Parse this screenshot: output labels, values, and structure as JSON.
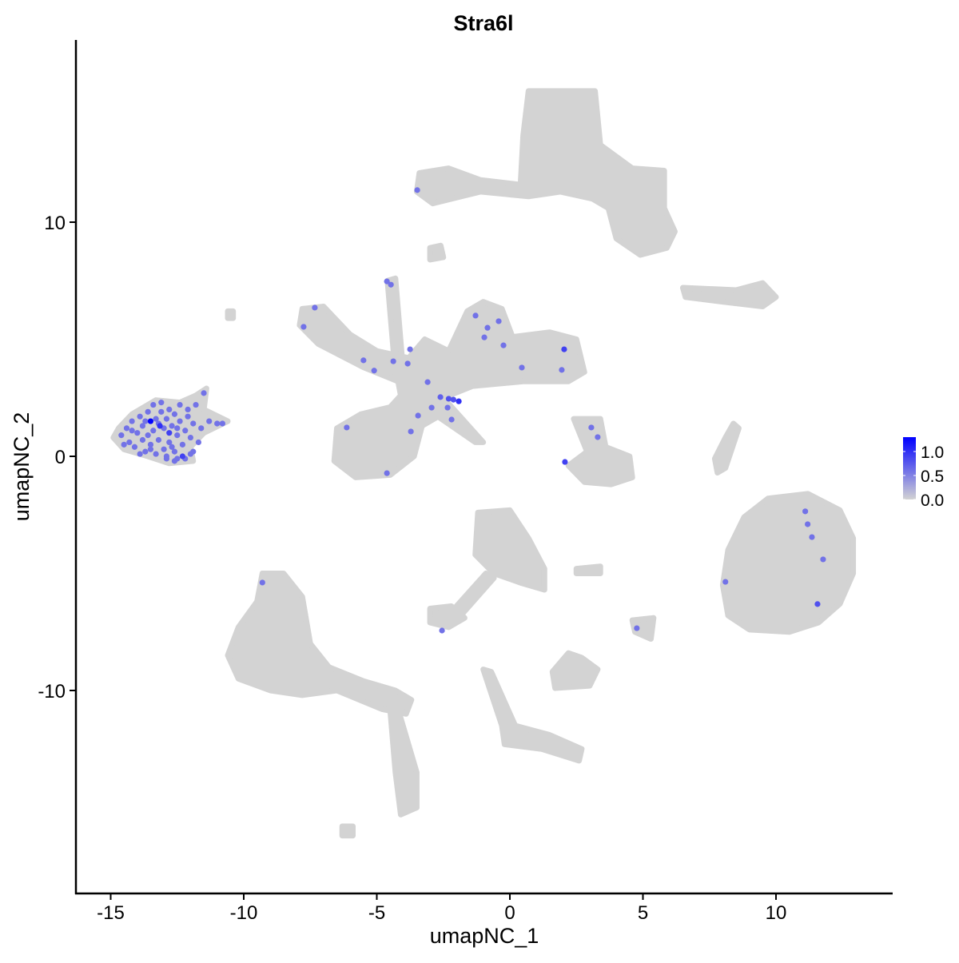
{
  "chart_data": {
    "type": "scatter",
    "title": "Stra6l",
    "xlabel": "umapNC_1",
    "ylabel": "umapNC_2",
    "xlim": [
      -16.3,
      14.4
    ],
    "ylim": [
      -18.6,
      17.9
    ],
    "xticks": [
      -15,
      -10,
      -5,
      0,
      5,
      10
    ],
    "yticks": [
      -10,
      0,
      10
    ],
    "xtick_labels": [
      "-15",
      "-10",
      "-5",
      "0",
      "5",
      "10"
    ],
    "ytick_labels": [
      "-10",
      "0",
      "10"
    ],
    "grid": false,
    "colors": {
      "low": "#D3D3D3",
      "high": "#0000FF"
    },
    "legend": {
      "position": "right",
      "min": 0.0,
      "max": 1.3,
      "ticks": [
        0.0,
        0.5,
        1.0
      ],
      "tick_labels": [
        "0.0",
        "0.5",
        "1.0"
      ]
    },
    "background_clusters": [
      [
        [
          0.7,
          15.6
        ],
        [
          3.2,
          15.6
        ],
        [
          3.4,
          13.3
        ],
        [
          4.6,
          12.3
        ],
        [
          5.8,
          12.2
        ],
        [
          5.8,
          10.6
        ],
        [
          6.2,
          9.6
        ],
        [
          5.9,
          8.9
        ],
        [
          4.9,
          8.6
        ],
        [
          4.0,
          9.3
        ],
        [
          3.7,
          10.6
        ],
        [
          3.1,
          11.0
        ],
        [
          1.9,
          11.3
        ],
        [
          0.7,
          11.1
        ],
        [
          -1.1,
          11.3
        ],
        [
          -2.9,
          10.8
        ],
        [
          -3.5,
          11.3
        ],
        [
          -3.4,
          12.1
        ],
        [
          -2.3,
          12.3
        ],
        [
          -1.1,
          11.8
        ],
        [
          0.4,
          11.6
        ],
        [
          0.5,
          13.7
        ]
      ],
      [
        [
          -3.0,
          8.9
        ],
        [
          -2.6,
          9.0
        ],
        [
          -2.5,
          8.5
        ],
        [
          -3.0,
          8.4
        ]
      ],
      [
        [
          6.5,
          7.2
        ],
        [
          8.5,
          7.1
        ],
        [
          9.5,
          7.4
        ],
        [
          10.0,
          6.8
        ],
        [
          9.5,
          6.4
        ],
        [
          8.0,
          6.6
        ],
        [
          6.6,
          6.8
        ]
      ],
      [
        [
          -7.8,
          6.3
        ],
        [
          -7.0,
          6.4
        ],
        [
          -6.0,
          5.2
        ],
        [
          -5.0,
          4.5
        ],
        [
          -3.8,
          4.2
        ],
        [
          -3.2,
          5.0
        ],
        [
          -2.3,
          4.5
        ],
        [
          -1.6,
          6.2
        ],
        [
          -1.0,
          6.6
        ],
        [
          -0.3,
          6.3
        ],
        [
          0.1,
          5.1
        ],
        [
          1.5,
          5.3
        ],
        [
          2.5,
          5.0
        ],
        [
          2.8,
          3.6
        ],
        [
          2.2,
          3.2
        ],
        [
          0.5,
          3.2
        ],
        [
          -1.4,
          3.0
        ],
        [
          -2.5,
          2.5
        ],
        [
          -1.0,
          0.6
        ],
        [
          -1.3,
          0.6
        ],
        [
          -2.7,
          1.7
        ],
        [
          -3.3,
          1.3
        ],
        [
          -3.6,
          0.0
        ],
        [
          -4.5,
          -0.8
        ],
        [
          -5.8,
          -0.9
        ],
        [
          -6.6,
          -0.2
        ],
        [
          -6.5,
          1.2
        ],
        [
          -5.6,
          1.8
        ],
        [
          -4.5,
          2.1
        ],
        [
          -4.1,
          2.6
        ],
        [
          -4.2,
          3.2
        ],
        [
          -5.5,
          3.8
        ],
        [
          -7.2,
          4.8
        ],
        [
          -7.9,
          5.6
        ]
      ],
      [
        [
          -4.6,
          7.5
        ],
        [
          -4.3,
          7.6
        ],
        [
          -4.0,
          3.5
        ],
        [
          -4.3,
          3.5
        ]
      ],
      [
        [
          -14.7,
          1.2
        ],
        [
          -14.2,
          1.8
        ],
        [
          -13.3,
          2.4
        ],
        [
          -12.4,
          2.3
        ],
        [
          -11.8,
          2.6
        ],
        [
          -11.4,
          2.9
        ],
        [
          -11.5,
          2.0
        ],
        [
          -10.6,
          1.5
        ],
        [
          -11.5,
          1.0
        ],
        [
          -12.0,
          0.4
        ],
        [
          -11.9,
          -0.2
        ],
        [
          -12.8,
          -0.3
        ],
        [
          -13.6,
          0.0
        ],
        [
          -14.5,
          0.3
        ],
        [
          -14.9,
          0.8
        ]
      ],
      [
        [
          2.4,
          1.6
        ],
        [
          3.4,
          1.6
        ],
        [
          3.6,
          0.4
        ],
        [
          4.5,
          0.0
        ],
        [
          4.6,
          -0.9
        ],
        [
          3.8,
          -1.2
        ],
        [
          2.8,
          -1.1
        ],
        [
          2.2,
          -0.4
        ],
        [
          2.9,
          0.2
        ]
      ],
      [
        [
          8.4,
          1.4
        ],
        [
          8.6,
          1.2
        ],
        [
          8.1,
          -0.5
        ],
        [
          7.8,
          -0.7
        ],
        [
          7.7,
          -0.1
        ],
        [
          8.1,
          0.8
        ]
      ],
      [
        [
          9.7,
          -1.8
        ],
        [
          11.2,
          -1.6
        ],
        [
          12.4,
          -2.3
        ],
        [
          12.9,
          -3.5
        ],
        [
          12.9,
          -5.0
        ],
        [
          12.4,
          -6.3
        ],
        [
          11.6,
          -7.1
        ],
        [
          10.5,
          -7.5
        ],
        [
          9.0,
          -7.4
        ],
        [
          8.2,
          -6.8
        ],
        [
          8.0,
          -5.5
        ],
        [
          8.2,
          -4.0
        ],
        [
          8.8,
          -2.6
        ]
      ],
      [
        [
          -9.3,
          -5.0
        ],
        [
          -8.5,
          -5.0
        ],
        [
          -7.8,
          -6.0
        ],
        [
          -7.5,
          -8.0
        ],
        [
          -6.8,
          -9.0
        ],
        [
          -5.5,
          -9.6
        ],
        [
          -4.3,
          -10.0
        ],
        [
          -3.7,
          -10.4
        ],
        [
          -3.9,
          -11.0
        ],
        [
          -4.8,
          -10.8
        ],
        [
          -6.5,
          -10.0
        ],
        [
          -7.8,
          -10.2
        ],
        [
          -9.0,
          -10.0
        ],
        [
          -10.2,
          -9.5
        ],
        [
          -10.6,
          -8.5
        ],
        [
          -10.2,
          -7.3
        ],
        [
          -9.5,
          -6.2
        ]
      ],
      [
        [
          -4.5,
          -10.8
        ],
        [
          -4.2,
          -10.8
        ],
        [
          -3.5,
          -13.5
        ],
        [
          -3.5,
          -15.0
        ],
        [
          -4.1,
          -15.3
        ],
        [
          -4.3,
          -13.5
        ]
      ],
      [
        [
          -1.2,
          -2.4
        ],
        [
          0.0,
          -2.3
        ],
        [
          0.7,
          -3.5
        ],
        [
          1.3,
          -4.8
        ],
        [
          1.3,
          -5.7
        ],
        [
          0.4,
          -5.4
        ],
        [
          -0.6,
          -5.0
        ],
        [
          -1.3,
          -4.2
        ]
      ],
      [
        [
          -0.9,
          -5.0
        ],
        [
          -0.6,
          -5.2
        ],
        [
          -2.0,
          -7.0
        ],
        [
          -2.4,
          -6.9
        ]
      ],
      [
        [
          -3.0,
          -6.5
        ],
        [
          -2.2,
          -6.4
        ],
        [
          -1.7,
          -6.9
        ],
        [
          -2.3,
          -7.3
        ],
        [
          -3.0,
          -7.1
        ]
      ],
      [
        [
          1.6,
          -9.2
        ],
        [
          2.2,
          -8.4
        ],
        [
          2.7,
          -8.6
        ],
        [
          3.3,
          -9.1
        ],
        [
          3.0,
          -9.8
        ],
        [
          1.7,
          -9.9
        ]
      ],
      [
        [
          -1.0,
          -9.1
        ],
        [
          -0.7,
          -9.2
        ],
        [
          0.2,
          -11.5
        ],
        [
          1.5,
          -11.9
        ],
        [
          2.7,
          -12.5
        ],
        [
          2.6,
          -13.0
        ],
        [
          1.2,
          -12.5
        ],
        [
          -0.2,
          -12.3
        ],
        [
          -0.3,
          -11.5
        ]
      ],
      [
        [
          4.6,
          -7.0
        ],
        [
          5.4,
          -6.9
        ],
        [
          5.3,
          -7.8
        ],
        [
          4.7,
          -7.5
        ]
      ],
      [
        [
          2.5,
          -4.8
        ],
        [
          3.4,
          -4.7
        ],
        [
          3.4,
          -5.0
        ],
        [
          2.5,
          -5.0
        ]
      ],
      [
        [
          -6.3,
          -15.8
        ],
        [
          -5.9,
          -15.8
        ],
        [
          -5.9,
          -16.2
        ],
        [
          -6.3,
          -16.2
        ]
      ],
      [
        [
          -10.6,
          6.2
        ],
        [
          -10.4,
          6.2
        ],
        [
          -10.4,
          5.9
        ],
        [
          -10.6,
          5.9
        ]
      ]
    ],
    "expressed_points": [
      {
        "x": -13.5,
        "y": 1.5,
        "v": 1.3
      },
      {
        "x": -13.15,
        "y": 1.3,
        "v": 1.0
      },
      {
        "x": -12.8,
        "y": 1.0,
        "v": 0.9
      },
      {
        "x": -12.3,
        "y": 0.0,
        "v": 0.9
      },
      {
        "x": -14.6,
        "y": 0.9,
        "v": 0.6
      },
      {
        "x": -14.4,
        "y": 1.2,
        "v": 0.6
      },
      {
        "x": -14.3,
        "y": 0.6,
        "v": 0.6
      },
      {
        "x": -14.2,
        "y": 1.5,
        "v": 0.6
      },
      {
        "x": -14.1,
        "y": 0.4,
        "v": 0.6
      },
      {
        "x": -14.0,
        "y": 1.0,
        "v": 0.6
      },
      {
        "x": -13.9,
        "y": 1.7,
        "v": 0.6
      },
      {
        "x": -13.8,
        "y": 0.7,
        "v": 0.6
      },
      {
        "x": -13.8,
        "y": 1.3,
        "v": 0.6
      },
      {
        "x": -13.7,
        "y": 0.2,
        "v": 0.6
      },
      {
        "x": -13.6,
        "y": 1.9,
        "v": 0.6
      },
      {
        "x": -13.6,
        "y": 0.9,
        "v": 0.6
      },
      {
        "x": -13.5,
        "y": 0.5,
        "v": 0.6
      },
      {
        "x": -13.4,
        "y": 2.2,
        "v": 0.6
      },
      {
        "x": -13.4,
        "y": 1.1,
        "v": 0.6
      },
      {
        "x": -13.3,
        "y": 0.1,
        "v": 0.6
      },
      {
        "x": -13.3,
        "y": 1.6,
        "v": 0.6
      },
      {
        "x": -13.2,
        "y": 0.7,
        "v": 0.6
      },
      {
        "x": -13.1,
        "y": 2.3,
        "v": 0.6
      },
      {
        "x": -13.1,
        "y": 1.9,
        "v": 0.6
      },
      {
        "x": -13.0,
        "y": 0.3,
        "v": 0.6
      },
      {
        "x": -13.0,
        "y": 1.2,
        "v": 0.6
      },
      {
        "x": -12.9,
        "y": 1.6,
        "v": 0.6
      },
      {
        "x": -12.9,
        "y": 0.0,
        "v": 0.6
      },
      {
        "x": -12.8,
        "y": 2.0,
        "v": 0.6
      },
      {
        "x": -12.8,
        "y": 0.6,
        "v": 0.6
      },
      {
        "x": -12.7,
        "y": 1.3,
        "v": 0.6
      },
      {
        "x": -12.6,
        "y": 0.2,
        "v": 0.6
      },
      {
        "x": -12.6,
        "y": 1.8,
        "v": 0.6
      },
      {
        "x": -12.5,
        "y": -0.1,
        "v": 0.6
      },
      {
        "x": -12.5,
        "y": 0.9,
        "v": 0.6
      },
      {
        "x": -12.4,
        "y": 1.5,
        "v": 0.6
      },
      {
        "x": -12.4,
        "y": 2.2,
        "v": 0.6
      },
      {
        "x": -12.3,
        "y": 0.5,
        "v": 0.6
      },
      {
        "x": -12.2,
        "y": 1.1,
        "v": 0.6
      },
      {
        "x": -12.2,
        "y": -0.1,
        "v": 0.6
      },
      {
        "x": -12.1,
        "y": 1.7,
        "v": 0.6
      },
      {
        "x": -12.0,
        "y": 0.1,
        "v": 0.6
      },
      {
        "x": -12.0,
        "y": 0.8,
        "v": 0.6
      },
      {
        "x": -11.9,
        "y": 1.4,
        "v": 0.6
      },
      {
        "x": -11.8,
        "y": 2.2,
        "v": 0.6
      },
      {
        "x": -11.7,
        "y": 0.6,
        "v": 0.6
      },
      {
        "x": -11.6,
        "y": 1.2,
        "v": 0.6
      },
      {
        "x": -11.5,
        "y": 2.7,
        "v": 0.6
      },
      {
        "x": -11.3,
        "y": 1.5,
        "v": 0.6
      },
      {
        "x": -11.0,
        "y": 1.4,
        "v": 0.6
      },
      {
        "x": -10.8,
        "y": 1.4,
        "v": 0.6
      },
      {
        "x": -13.9,
        "y": 0.1,
        "v": 0.6
      },
      {
        "x": -14.5,
        "y": 0.5,
        "v": 0.6
      },
      {
        "x": -13.7,
        "y": 1.5,
        "v": 0.6
      },
      {
        "x": -13.2,
        "y": 1.4,
        "v": 0.6
      },
      {
        "x": -12.7,
        "y": 0.4,
        "v": 0.6
      },
      {
        "x": -12.9,
        "y": -0.1,
        "v": 0.6
      },
      {
        "x": -12.6,
        "y": -0.2,
        "v": 0.6
      },
      {
        "x": -12.1,
        "y": 2.0,
        "v": 0.6
      },
      {
        "x": -14.2,
        "y": 1.1,
        "v": 0.6
      },
      {
        "x": -13.5,
        "y": 0.3,
        "v": 0.6
      },
      {
        "x": -11.9,
        "y": 0.2,
        "v": 0.6
      },
      {
        "x": -12.5,
        "y": 1.2,
        "v": 0.6
      },
      {
        "x": -3.48,
        "y": 11.37,
        "v": 0.6
      },
      {
        "x": -4.62,
        "y": 7.47,
        "v": 0.6
      },
      {
        "x": -4.47,
        "y": 7.33,
        "v": 0.6
      },
      {
        "x": -7.33,
        "y": 6.35,
        "v": 0.6
      },
      {
        "x": -7.75,
        "y": 5.53,
        "v": 0.6
      },
      {
        "x": -5.5,
        "y": 4.1,
        "v": 0.6
      },
      {
        "x": -5.1,
        "y": 3.66,
        "v": 0.6
      },
      {
        "x": -4.38,
        "y": 4.06,
        "v": 0.6
      },
      {
        "x": -3.75,
        "y": 4.57,
        "v": 0.6
      },
      {
        "x": -3.84,
        "y": 3.96,
        "v": 0.6
      },
      {
        "x": -3.09,
        "y": 3.17,
        "v": 0.6
      },
      {
        "x": -2.61,
        "y": 2.53,
        "v": 0.7
      },
      {
        "x": -2.3,
        "y": 2.46,
        "v": 0.8
      },
      {
        "x": -2.12,
        "y": 2.42,
        "v": 0.8
      },
      {
        "x": -1.92,
        "y": 2.35,
        "v": 1.0
      },
      {
        "x": -2.34,
        "y": 2.08,
        "v": 0.6
      },
      {
        "x": -2.19,
        "y": 1.57,
        "v": 0.6
      },
      {
        "x": -2.94,
        "y": 2.08,
        "v": 0.6
      },
      {
        "x": -3.45,
        "y": 1.74,
        "v": 0.6
      },
      {
        "x": -3.72,
        "y": 1.06,
        "v": 0.6
      },
      {
        "x": -4.62,
        "y": -0.72,
        "v": 0.6
      },
      {
        "x": -6.13,
        "y": 1.23,
        "v": 0.6
      },
      {
        "x": -1.29,
        "y": 6.01,
        "v": 0.6
      },
      {
        "x": -0.84,
        "y": 5.49,
        "v": 0.6
      },
      {
        "x": -0.42,
        "y": 5.77,
        "v": 0.6
      },
      {
        "x": -0.24,
        "y": 4.74,
        "v": 0.6
      },
      {
        "x": -0.96,
        "y": 5.08,
        "v": 0.6
      },
      {
        "x": 0.45,
        "y": 3.79,
        "v": 0.6
      },
      {
        "x": 2.04,
        "y": 4.57,
        "v": 0.9
      },
      {
        "x": 1.95,
        "y": 3.69,
        "v": 0.6
      },
      {
        "x": 2.07,
        "y": -0.24,
        "v": 0.9
      },
      {
        "x": 3.06,
        "y": 1.23,
        "v": 0.6
      },
      {
        "x": 3.3,
        "y": 0.82,
        "v": 0.6
      },
      {
        "x": 11.1,
        "y": -2.35,
        "v": 0.6
      },
      {
        "x": 11.19,
        "y": -2.9,
        "v": 0.6
      },
      {
        "x": 11.35,
        "y": -3.45,
        "v": 0.6
      },
      {
        "x": 11.77,
        "y": -4.4,
        "v": 0.6
      },
      {
        "x": 11.56,
        "y": -6.31,
        "v": 0.8
      },
      {
        "x": 8.1,
        "y": -5.36,
        "v": 0.6
      },
      {
        "x": -9.3,
        "y": -5.39,
        "v": 0.6
      },
      {
        "x": -2.55,
        "y": -7.44,
        "v": 0.6
      },
      {
        "x": 4.77,
        "y": -7.34,
        "v": 0.6
      }
    ]
  }
}
